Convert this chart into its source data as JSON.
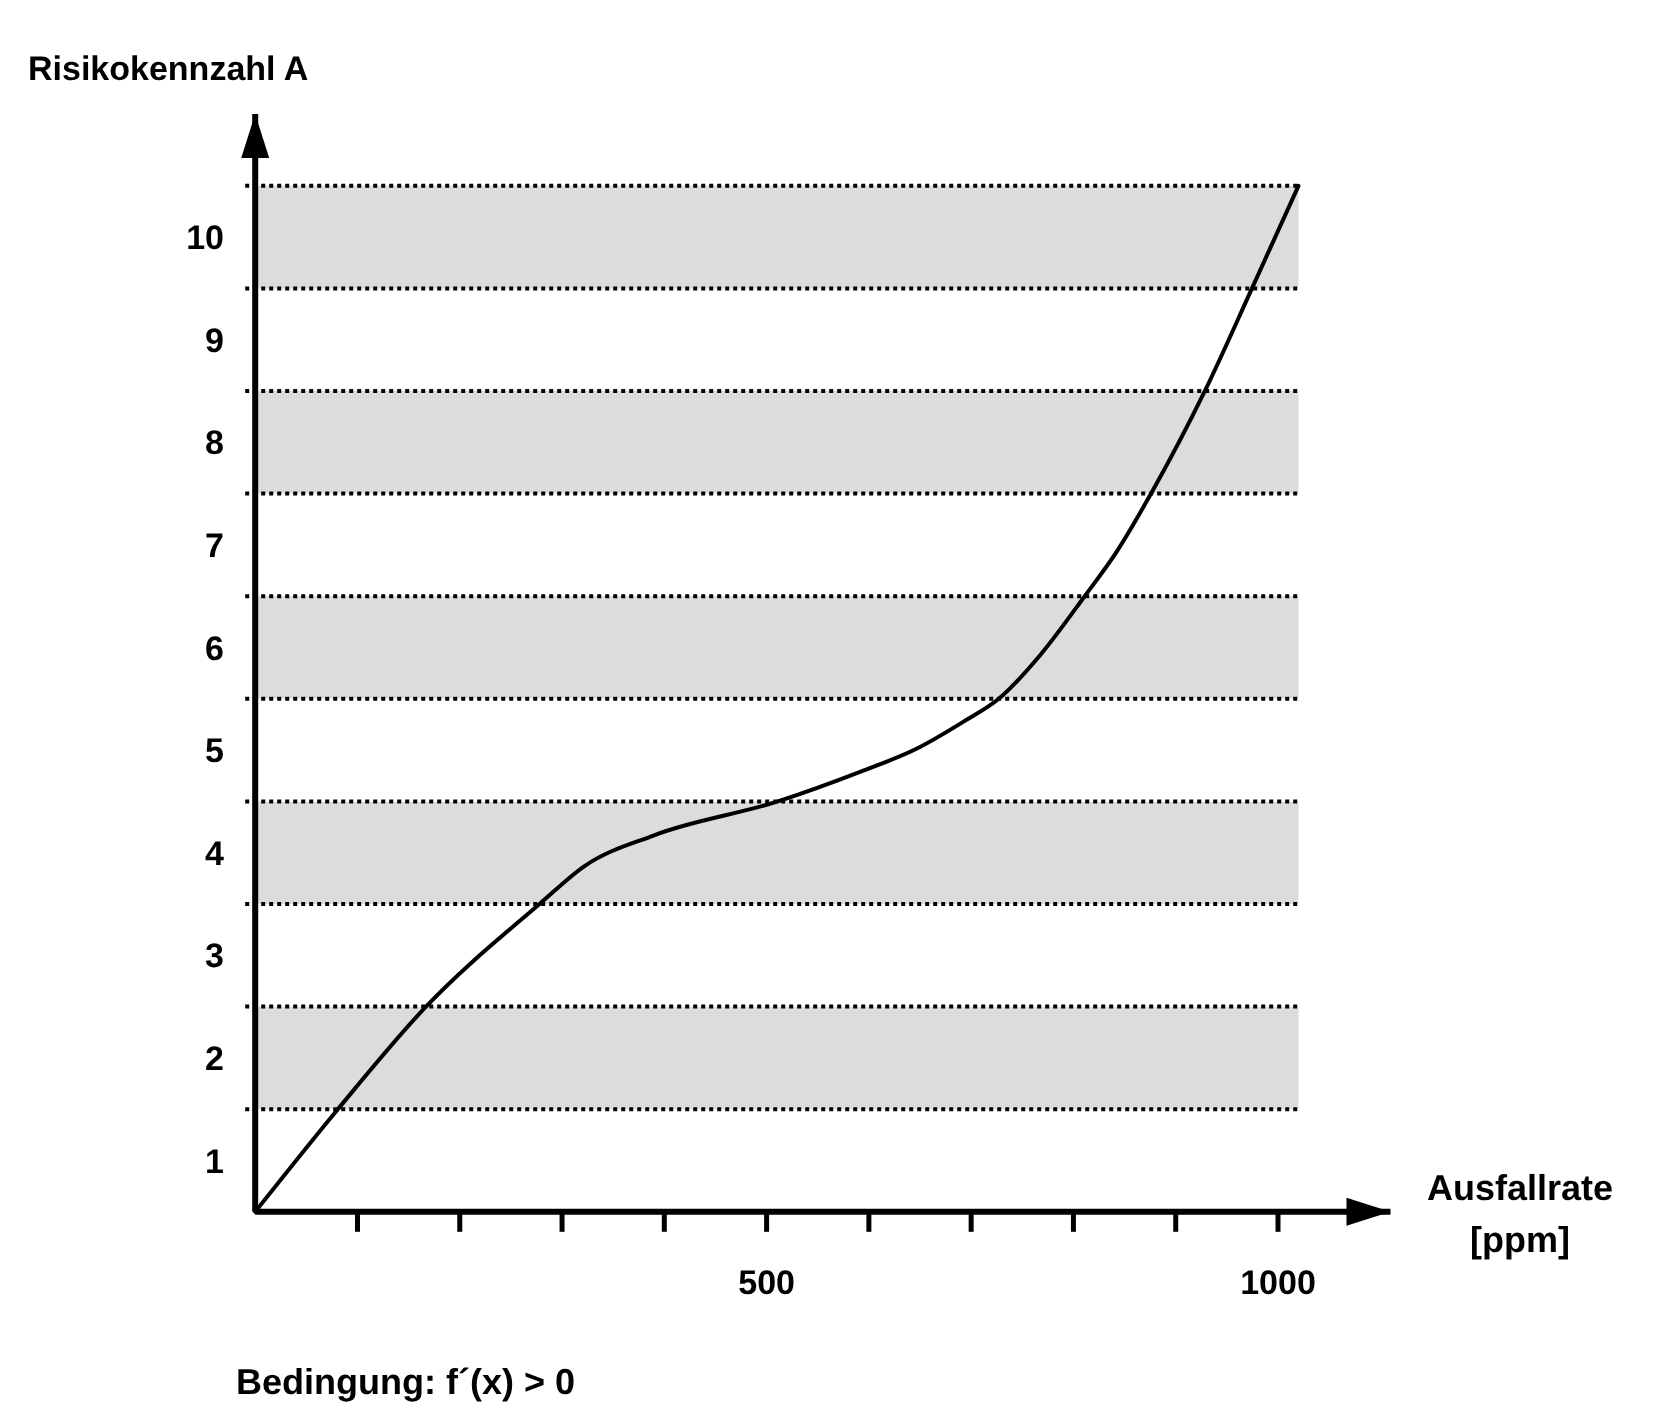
{
  "chart_data": {
    "type": "line",
    "ylabel": "Risikokennzahl A",
    "xlabel": "Ausfallrate [ppm]",
    "annotations": [
      "Bedingung: f´(x) > 0"
    ],
    "xlim": [
      0,
      1110
    ],
    "ylim": [
      0,
      10.7
    ],
    "xticks": [
      {
        "value": 100,
        "label": null
      },
      {
        "value": 200,
        "label": null
      },
      {
        "value": 300,
        "label": null
      },
      {
        "value": 400,
        "label": null
      },
      500,
      {
        "value": 600,
        "label": null
      },
      {
        "value": 700,
        "label": null
      },
      {
        "value": 800,
        "label": null
      },
      {
        "value": 900,
        "label": null
      },
      1000
    ],
    "yticks": [
      {
        "value": 0.5,
        "label": "1"
      },
      {
        "value": 1.5,
        "label": "2"
      },
      {
        "value": 2.5,
        "label": "3"
      },
      {
        "value": 3.5,
        "label": "4"
      },
      {
        "value": 4.5,
        "label": "5"
      },
      {
        "value": 5.5,
        "label": "6"
      },
      {
        "value": 6.5,
        "label": "7"
      },
      {
        "value": 7.5,
        "label": "8"
      },
      {
        "value": 8.5,
        "label": "9"
      },
      {
        "value": 9.5,
        "label": "10"
      }
    ],
    "bands": [
      {
        "axis": "y",
        "from": 1,
        "to": 2,
        "color": "#dcdcdc"
      },
      {
        "axis": "y",
        "from": 3,
        "to": 4,
        "color": "#dcdcdc"
      },
      {
        "axis": "y",
        "from": 5,
        "to": 6,
        "color": "#dcdcdc"
      },
      {
        "axis": "y",
        "from": 7,
        "to": 8,
        "color": "#dcdcdc"
      },
      {
        "axis": "y",
        "from": 9,
        "to": 10,
        "color": "#dcdcdc"
      }
    ],
    "ref_lines": [
      {
        "axis": "y",
        "value": 1,
        "color": "#000000",
        "line_style": "dotted"
      },
      {
        "axis": "y",
        "value": 2,
        "color": "#000000",
        "line_style": "dotted"
      },
      {
        "axis": "y",
        "value": 3,
        "color": "#000000",
        "line_style": "dotted"
      },
      {
        "axis": "y",
        "value": 4,
        "color": "#000000",
        "line_style": "dotted"
      },
      {
        "axis": "y",
        "value": 5,
        "color": "#000000",
        "line_style": "dotted"
      },
      {
        "axis": "y",
        "value": 6,
        "color": "#000000",
        "line_style": "dotted"
      },
      {
        "axis": "y",
        "value": 7,
        "color": "#000000",
        "line_style": "dotted"
      },
      {
        "axis": "y",
        "value": 8,
        "color": "#000000",
        "line_style": "dotted"
      },
      {
        "axis": "y",
        "value": 9,
        "color": "#000000",
        "line_style": "dotted"
      },
      {
        "axis": "y",
        "value": 10,
        "color": "#000000",
        "line_style": "dotted"
      }
    ],
    "series": [
      {
        "color": "#000000",
        "x": [
          0,
          80,
          167,
          278,
          322,
          390,
          511,
          592,
          646,
          693,
          727,
          767,
          811,
          842,
          877,
          929,
          975,
          1020
        ],
        "values": [
          0,
          0.99,
          2.0,
          3.0,
          3.37,
          3.67,
          4.0,
          4.29,
          4.51,
          4.78,
          5.0,
          5.42,
          6.0,
          6.43,
          7.02,
          8.01,
          9.01,
          10.0
        ]
      }
    ],
    "line_style": "solid"
  }
}
